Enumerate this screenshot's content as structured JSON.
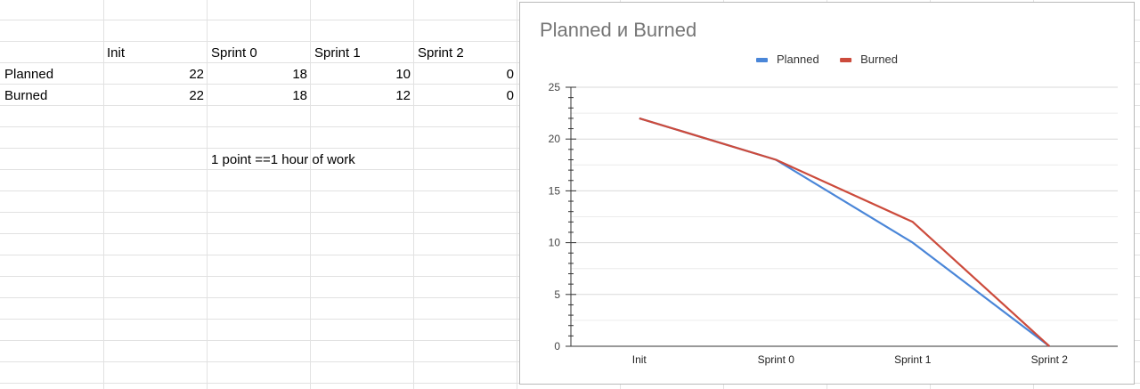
{
  "sheet": {
    "header_row": [
      "Init",
      "Sprint 0",
      "Sprint 1",
      "Sprint 2"
    ],
    "rows": [
      {
        "label": "Planned",
        "values": [
          "22",
          "18",
          "10",
          "0"
        ]
      },
      {
        "label": "Burned",
        "values": [
          "22",
          "18",
          "12",
          "0"
        ]
      }
    ],
    "note": "1 point ==1 hour of work"
  },
  "chart_data": {
    "type": "line",
    "title": "Planned и Burned",
    "categories": [
      "Init",
      "Sprint 0",
      "Sprint 1",
      "Sprint 2"
    ],
    "series": [
      {
        "name": "Planned",
        "values": [
          22,
          18,
          10,
          0
        ],
        "color": "#4a86d8"
      },
      {
        "name": "Burned",
        "values": [
          22,
          18,
          12,
          0
        ],
        "color": "#cc4b3c"
      }
    ],
    "xlabel": "",
    "ylabel": "",
    "ylim": [
      0,
      25
    ],
    "yticks": [
      "0",
      "5",
      "10",
      "15",
      "20",
      "25"
    ],
    "grid": true,
    "legend": "top"
  }
}
